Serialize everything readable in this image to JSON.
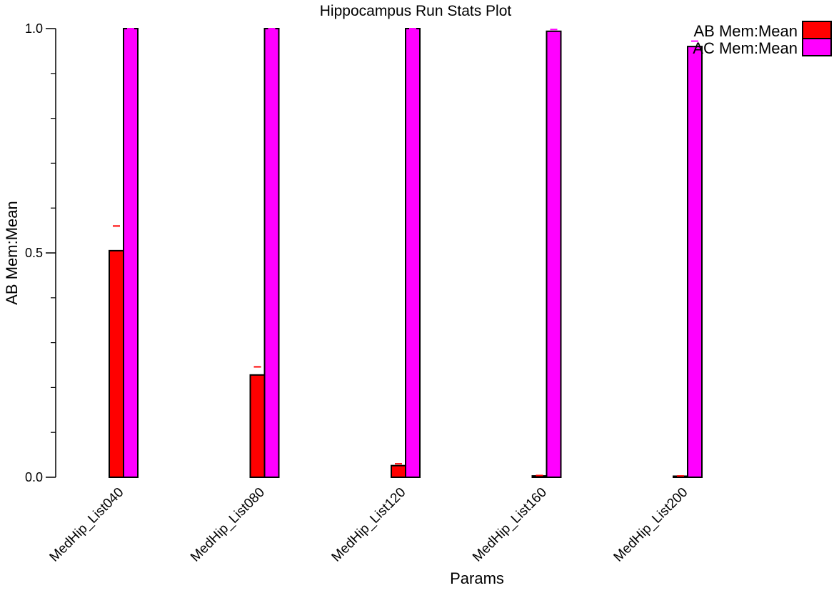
{
  "chart_data": {
    "type": "bar",
    "title": "Hippocampus Run Stats Plot",
    "xlabel": "Params",
    "ylabel": "AB Mem:Mean",
    "ylim": [
      0,
      1
    ],
    "yticks": [
      "0.0",
      "0.5",
      "1.0"
    ],
    "ytick_values": [
      0,
      0.5,
      1
    ],
    "minor_ytick_values": [
      0.1,
      0.2,
      0.3,
      0.4,
      0.6,
      0.7,
      0.8,
      0.9
    ],
    "categories": [
      "MedHip_List040",
      "MedHip_List080",
      "MedHip_List120",
      "MedHip_List160",
      "MedHip_List200"
    ],
    "series": [
      {
        "name": "AB Mem:Mean",
        "color": "#ff0000",
        "values": [
          0.505,
          0.228,
          0.026,
          0.003,
          0.002
        ],
        "err": [
          0.56,
          0.246,
          0.03,
          0.004,
          0.003
        ]
      },
      {
        "name": "AC Mem:Mean",
        "color": "#ff00ff",
        "values": [
          1.0,
          1.0,
          1.0,
          0.994,
          0.96
        ],
        "err": [
          1.0,
          1.0,
          1.0,
          0.998,
          0.972
        ]
      }
    ],
    "legend": "top-right",
    "grid": false
  }
}
